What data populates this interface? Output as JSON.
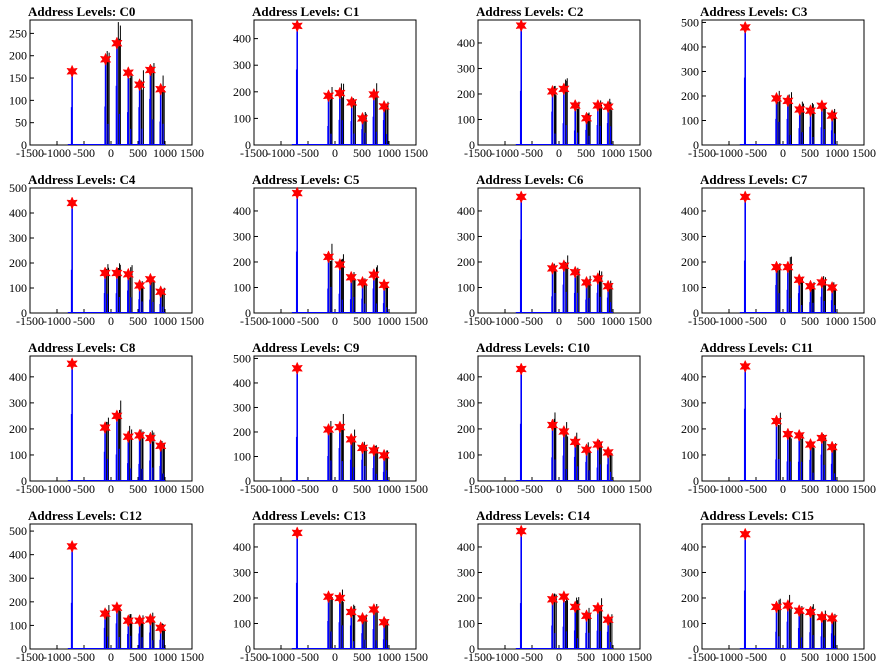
{
  "chart_data": [
    {
      "type": "line",
      "title": "Address Levels: C0",
      "xlim": [
        -1500,
        1500
      ],
      "ylim": [
        0,
        280
      ],
      "yticks": [
        0,
        50,
        100,
        150,
        200,
        250
      ],
      "xticks": [
        -1500,
        -1000,
        -500,
        0,
        500,
        1000,
        1500
      ],
      "tick_labels": [
        "-1500",
        "-1000",
        "-500",
        "0",
        "500",
        "1000",
        "1500"
      ],
      "peaks": [
        {
          "x": -720,
          "y": 165
        },
        {
          "x": -100,
          "y": 192
        },
        {
          "x": 110,
          "y": 228
        },
        {
          "x": 320,
          "y": 162
        },
        {
          "x": 530,
          "y": 135
        },
        {
          "x": 730,
          "y": 168
        },
        {
          "x": 920,
          "y": 125
        }
      ]
    },
    {
      "type": "line",
      "title": "Address Levels: C1",
      "xlim": [
        -1500,
        1500
      ],
      "ylim": [
        0,
        470
      ],
      "yticks": [
        0,
        100,
        200,
        300,
        400
      ],
      "xticks": [
        -1500,
        -1000,
        -500,
        0,
        500,
        1000,
        1500
      ],
      "tick_labels": [
        "-1500",
        "-1000",
        "-500",
        "0",
        "500",
        "1000",
        "1500"
      ],
      "peaks": [
        {
          "x": -700,
          "y": 448
        },
        {
          "x": -120,
          "y": 185
        },
        {
          "x": 90,
          "y": 195
        },
        {
          "x": 310,
          "y": 160
        },
        {
          "x": 510,
          "y": 100
        },
        {
          "x": 720,
          "y": 190
        },
        {
          "x": 910,
          "y": 145
        }
      ]
    },
    {
      "type": "line",
      "title": "Address Levels: C2",
      "xlim": [
        -1500,
        1500
      ],
      "ylim": [
        0,
        490
      ],
      "yticks": [
        0,
        100,
        200,
        300,
        400
      ],
      "xticks": [
        -1500,
        -1000,
        -500,
        0,
        500,
        1000,
        1500
      ],
      "tick_labels": [
        "-1500",
        "-1000",
        "-500",
        "0",
        "500",
        "1000",
        "1500"
      ],
      "peaks": [
        {
          "x": -700,
          "y": 468
        },
        {
          "x": -120,
          "y": 210
        },
        {
          "x": 90,
          "y": 220
        },
        {
          "x": 300,
          "y": 155
        },
        {
          "x": 510,
          "y": 105
        },
        {
          "x": 720,
          "y": 155
        },
        {
          "x": 910,
          "y": 150
        }
      ]
    },
    {
      "type": "line",
      "title": "Address Levels: C3",
      "xlim": [
        -1500,
        1500
      ],
      "ylim": [
        0,
        510
      ],
      "yticks": [
        0,
        100,
        200,
        300,
        400,
        500
      ],
      "xticks": [
        -1500,
        -1000,
        -500,
        0,
        500,
        1000,
        1500
      ],
      "tick_labels": [
        "-1500",
        "-1000",
        "-500",
        "0",
        "500",
        "1000",
        "1500"
      ],
      "peaks": [
        {
          "x": -700,
          "y": 480
        },
        {
          "x": -120,
          "y": 190
        },
        {
          "x": 90,
          "y": 180
        },
        {
          "x": 310,
          "y": 145
        },
        {
          "x": 510,
          "y": 140
        },
        {
          "x": 720,
          "y": 160
        },
        {
          "x": 910,
          "y": 120
        }
      ]
    },
    {
      "type": "line",
      "title": "Address Levels: C4",
      "xlim": [
        -1500,
        1500
      ],
      "ylim": [
        0,
        500
      ],
      "yticks": [
        0,
        100,
        200,
        300,
        400,
        500
      ],
      "xticks": [
        -1500,
        -1000,
        -500,
        0,
        500,
        1000,
        1500
      ],
      "tick_labels": [
        "-1500",
        "-1000",
        "-500",
        "0",
        "500",
        "1000",
        "1500"
      ],
      "peaks": [
        {
          "x": -720,
          "y": 440
        },
        {
          "x": -110,
          "y": 160
        },
        {
          "x": 110,
          "y": 160
        },
        {
          "x": 320,
          "y": 155
        },
        {
          "x": 530,
          "y": 110
        },
        {
          "x": 730,
          "y": 135
        },
        {
          "x": 920,
          "y": 85
        }
      ]
    },
    {
      "type": "line",
      "title": "Address Levels: C5",
      "xlim": [
        -1500,
        1500
      ],
      "ylim": [
        0,
        490
      ],
      "yticks": [
        0,
        100,
        200,
        300,
        400
      ],
      "xticks": [
        -1500,
        -1000,
        -500,
        0,
        500,
        1000,
        1500
      ],
      "tick_labels": [
        "-1500",
        "-1000",
        "-500",
        "0",
        "500",
        "1000",
        "1500"
      ],
      "peaks": [
        {
          "x": -700,
          "y": 470
        },
        {
          "x": -120,
          "y": 220
        },
        {
          "x": 90,
          "y": 190
        },
        {
          "x": 300,
          "y": 140
        },
        {
          "x": 510,
          "y": 120
        },
        {
          "x": 720,
          "y": 150
        },
        {
          "x": 910,
          "y": 110
        }
      ]
    },
    {
      "type": "line",
      "title": "Address Levels: C6",
      "xlim": [
        -1500,
        1500
      ],
      "ylim": [
        0,
        490
      ],
      "yticks": [
        0,
        100,
        200,
        300,
        400
      ],
      "xticks": [
        -1500,
        -1000,
        -500,
        0,
        500,
        1000,
        1500
      ],
      "tick_labels": [
        "-1500",
        "-1000",
        "-500",
        "0",
        "500",
        "1000",
        "1500"
      ],
      "peaks": [
        {
          "x": -700,
          "y": 455
        },
        {
          "x": -120,
          "y": 175
        },
        {
          "x": 90,
          "y": 185
        },
        {
          "x": 300,
          "y": 160
        },
        {
          "x": 510,
          "y": 120
        },
        {
          "x": 720,
          "y": 135
        },
        {
          "x": 910,
          "y": 105
        }
      ]
    },
    {
      "type": "line",
      "title": "Address Levels: C7",
      "xlim": [
        -1500,
        1500
      ],
      "ylim": [
        0,
        490
      ],
      "yticks": [
        0,
        100,
        200,
        300,
        400
      ],
      "xticks": [
        -1500,
        -1000,
        -500,
        0,
        500,
        1000,
        1500
      ],
      "tick_labels": [
        "-1500",
        "-1000",
        "-500",
        "0",
        "500",
        "1000",
        "1500"
      ],
      "peaks": [
        {
          "x": -700,
          "y": 455
        },
        {
          "x": -120,
          "y": 180
        },
        {
          "x": 90,
          "y": 180
        },
        {
          "x": 300,
          "y": 130
        },
        {
          "x": 510,
          "y": 105
        },
        {
          "x": 720,
          "y": 120
        },
        {
          "x": 910,
          "y": 100
        }
      ]
    },
    {
      "type": "line",
      "title": "Address Levels: C8",
      "xlim": [
        -1500,
        1500
      ],
      "ylim": [
        0,
        480
      ],
      "yticks": [
        0,
        100,
        200,
        300,
        400
      ],
      "xticks": [
        -1500,
        -1000,
        -500,
        0,
        500,
        1000,
        1500
      ],
      "tick_labels": [
        "-1500",
        "-1000",
        "-500",
        "0",
        "500",
        "1000",
        "1500"
      ],
      "peaks": [
        {
          "x": -720,
          "y": 450
        },
        {
          "x": -110,
          "y": 205
        },
        {
          "x": 110,
          "y": 250
        },
        {
          "x": 320,
          "y": 170
        },
        {
          "x": 530,
          "y": 175
        },
        {
          "x": 730,
          "y": 165
        },
        {
          "x": 920,
          "y": 135
        }
      ]
    },
    {
      "type": "line",
      "title": "Address Levels: C9",
      "xlim": [
        -1500,
        1500
      ],
      "ylim": [
        0,
        510
      ],
      "yticks": [
        0,
        100,
        200,
        300,
        400,
        500
      ],
      "xticks": [
        -1500,
        -1000,
        -500,
        0,
        500,
        1000,
        1500
      ],
      "tick_labels": [
        "-1500",
        "-1000",
        "-500",
        "0",
        "500",
        "1000",
        "1500"
      ],
      "peaks": [
        {
          "x": -700,
          "y": 460
        },
        {
          "x": -120,
          "y": 210
        },
        {
          "x": 90,
          "y": 220
        },
        {
          "x": 300,
          "y": 170
        },
        {
          "x": 510,
          "y": 135
        },
        {
          "x": 720,
          "y": 125
        },
        {
          "x": 910,
          "y": 105
        }
      ]
    },
    {
      "type": "line",
      "title": "Address Levels: C10",
      "xlim": [
        -1500,
        1500
      ],
      "ylim": [
        0,
        480
      ],
      "yticks": [
        0,
        100,
        200,
        300,
        400
      ],
      "xticks": [
        -1500,
        -1000,
        -500,
        0,
        500,
        1000,
        1500
      ],
      "tick_labels": [
        "-1500",
        "-1000",
        "-500",
        "0",
        "500",
        "1000",
        "1500"
      ],
      "peaks": [
        {
          "x": -700,
          "y": 430
        },
        {
          "x": -120,
          "y": 215
        },
        {
          "x": 90,
          "y": 190
        },
        {
          "x": 300,
          "y": 150
        },
        {
          "x": 510,
          "y": 120
        },
        {
          "x": 720,
          "y": 140
        },
        {
          "x": 910,
          "y": 110
        }
      ]
    },
    {
      "type": "line",
      "title": "Address Levels: C11",
      "xlim": [
        -1500,
        1500
      ],
      "ylim": [
        0,
        480
      ],
      "yticks": [
        0,
        100,
        200,
        300,
        400
      ],
      "xticks": [
        -1500,
        -1000,
        -500,
        0,
        500,
        1000,
        1500
      ],
      "tick_labels": [
        "-1500",
        "-1000",
        "-500",
        "0",
        "500",
        "1000",
        "1500"
      ],
      "peaks": [
        {
          "x": -700,
          "y": 440
        },
        {
          "x": -120,
          "y": 230
        },
        {
          "x": 90,
          "y": 180
        },
        {
          "x": 300,
          "y": 175
        },
        {
          "x": 510,
          "y": 140
        },
        {
          "x": 720,
          "y": 165
        },
        {
          "x": 910,
          "y": 130
        }
      ]
    },
    {
      "type": "line",
      "title": "Address Levels: C12",
      "xlim": [
        -1500,
        1500
      ],
      "ylim": [
        0,
        530
      ],
      "yticks": [
        0,
        100,
        200,
        300,
        400,
        500
      ],
      "xticks": [
        -1500,
        -1000,
        -500,
        0,
        500,
        1000,
        1500
      ],
      "tick_labels": [
        "-1500",
        "-1000",
        "-500",
        "0",
        "500",
        "1000",
        "1500"
      ],
      "peaks": [
        {
          "x": -720,
          "y": 435
        },
        {
          "x": -110,
          "y": 150
        },
        {
          "x": 110,
          "y": 175
        },
        {
          "x": 320,
          "y": 120
        },
        {
          "x": 530,
          "y": 120
        },
        {
          "x": 730,
          "y": 125
        },
        {
          "x": 920,
          "y": 90
        }
      ]
    },
    {
      "type": "line",
      "title": "Address Levels: C13",
      "xlim": [
        -1500,
        1500
      ],
      "ylim": [
        0,
        490
      ],
      "yticks": [
        0,
        100,
        200,
        300,
        400
      ],
      "xticks": [
        -1500,
        -1000,
        -500,
        0,
        500,
        1000,
        1500
      ],
      "tick_labels": [
        "-1500",
        "-1000",
        "-500",
        "0",
        "500",
        "1000",
        "1500"
      ],
      "peaks": [
        {
          "x": -700,
          "y": 455
        },
        {
          "x": -120,
          "y": 205
        },
        {
          "x": 90,
          "y": 200
        },
        {
          "x": 300,
          "y": 145
        },
        {
          "x": 510,
          "y": 120
        },
        {
          "x": 720,
          "y": 155
        },
        {
          "x": 910,
          "y": 105
        }
      ]
    },
    {
      "type": "line",
      "title": "Address Levels: C14",
      "xlim": [
        -1500,
        1500
      ],
      "ylim": [
        0,
        490
      ],
      "yticks": [
        0,
        100,
        200,
        300,
        400
      ],
      "xticks": [
        -1500,
        -1000,
        -500,
        0,
        500,
        1000,
        1500
      ],
      "tick_labels": [
        "-1500",
        "-1000",
        "-500",
        "0",
        "500",
        "1000",
        "1500"
      ],
      "peaks": [
        {
          "x": -700,
          "y": 462
        },
        {
          "x": -120,
          "y": 195
        },
        {
          "x": 90,
          "y": 205
        },
        {
          "x": 300,
          "y": 165
        },
        {
          "x": 510,
          "y": 130
        },
        {
          "x": 720,
          "y": 160
        },
        {
          "x": 910,
          "y": 115
        }
      ]
    },
    {
      "type": "line",
      "title": "Address Levels: C15",
      "xlim": [
        -1500,
        1500
      ],
      "ylim": [
        0,
        490
      ],
      "yticks": [
        0,
        100,
        200,
        300,
        400
      ],
      "xticks": [
        -1500,
        -1000,
        -500,
        0,
        500,
        1000,
        1500
      ],
      "tick_labels": [
        "-1500",
        "-1000",
        "-500",
        "0",
        "500",
        "1000",
        "1500"
      ],
      "peaks": [
        {
          "x": -700,
          "y": 450
        },
        {
          "x": -120,
          "y": 165
        },
        {
          "x": 90,
          "y": 170
        },
        {
          "x": 300,
          "y": 150
        },
        {
          "x": 510,
          "y": 145
        },
        {
          "x": 720,
          "y": 125
        },
        {
          "x": 910,
          "y": 120
        }
      ]
    }
  ],
  "colors": {
    "trace_main": "#0000ff",
    "trace_secondary": "#000000",
    "peak_marker": "#ff0000",
    "axis": "#000000",
    "background": "#ffffff"
  }
}
